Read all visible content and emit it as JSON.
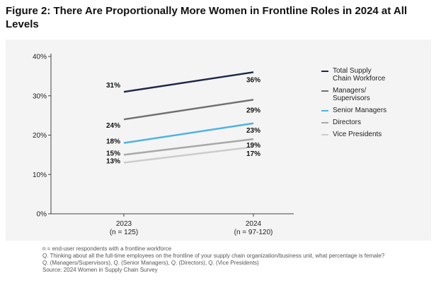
{
  "figure": {
    "title": "Figure 2: There Are Proportionally More Women in Frontline Roles in 2024 at All Levels"
  },
  "chart_data": {
    "type": "line",
    "title": "Figure 2: There Are Proportionally More Women in Frontline Roles in 2024 at All Levels",
    "categories": [
      "2023",
      "2024"
    ],
    "category_notes": [
      "(n = 125)",
      "(n = 97-120)"
    ],
    "ylim": [
      0,
      40
    ],
    "yticks": [
      0,
      10,
      20,
      30,
      40
    ],
    "ytick_labels": [
      "0%",
      "10%",
      "20%",
      "30%",
      "40%"
    ],
    "legend_position": "right",
    "series": [
      {
        "name": "Total Supply Chain Workforce",
        "name_lines": [
          "Total Supply",
          "Chain Workforce"
        ],
        "values": [
          31,
          36
        ],
        "labels": [
          "31%",
          "36%"
        ],
        "color": "#1b2a47"
      },
      {
        "name": "Managers/ Supervisors",
        "name_lines": [
          "Managers/",
          "Supervisors"
        ],
        "values": [
          24,
          29
        ],
        "labels": [
          "24%",
          "29%"
        ],
        "color": "#707070"
      },
      {
        "name": "Senior Managers",
        "name_lines": [
          "Senior Managers"
        ],
        "values": [
          18,
          23
        ],
        "labels": [
          "18%",
          "23%"
        ],
        "color": "#4db3e6"
      },
      {
        "name": "Directors",
        "name_lines": [
          "Directors"
        ],
        "values": [
          15,
          19
        ],
        "labels": [
          "15%",
          "19%"
        ],
        "color": "#a8a8a8"
      },
      {
        "name": "Vice Presidents",
        "name_lines": [
          "Vice Presidents"
        ],
        "values": [
          13,
          17
        ],
        "labels": [
          "13%",
          "17%"
        ],
        "color": "#cccccc"
      }
    ]
  },
  "footnotes": {
    "line1": "n = end-user respondents with a frontline workforce",
    "line2": "Q. Thinking about all the full-time employees on the frontline of your supply chain organization/business unit, what percentage is female?",
    "line3": "Q. (Managers/Supervisors), Q. (Senior Managers), Q. (Directors), Q. (Vice Presidents)",
    "line4": "Source: 2024 Women in Supply Chain Survey"
  }
}
